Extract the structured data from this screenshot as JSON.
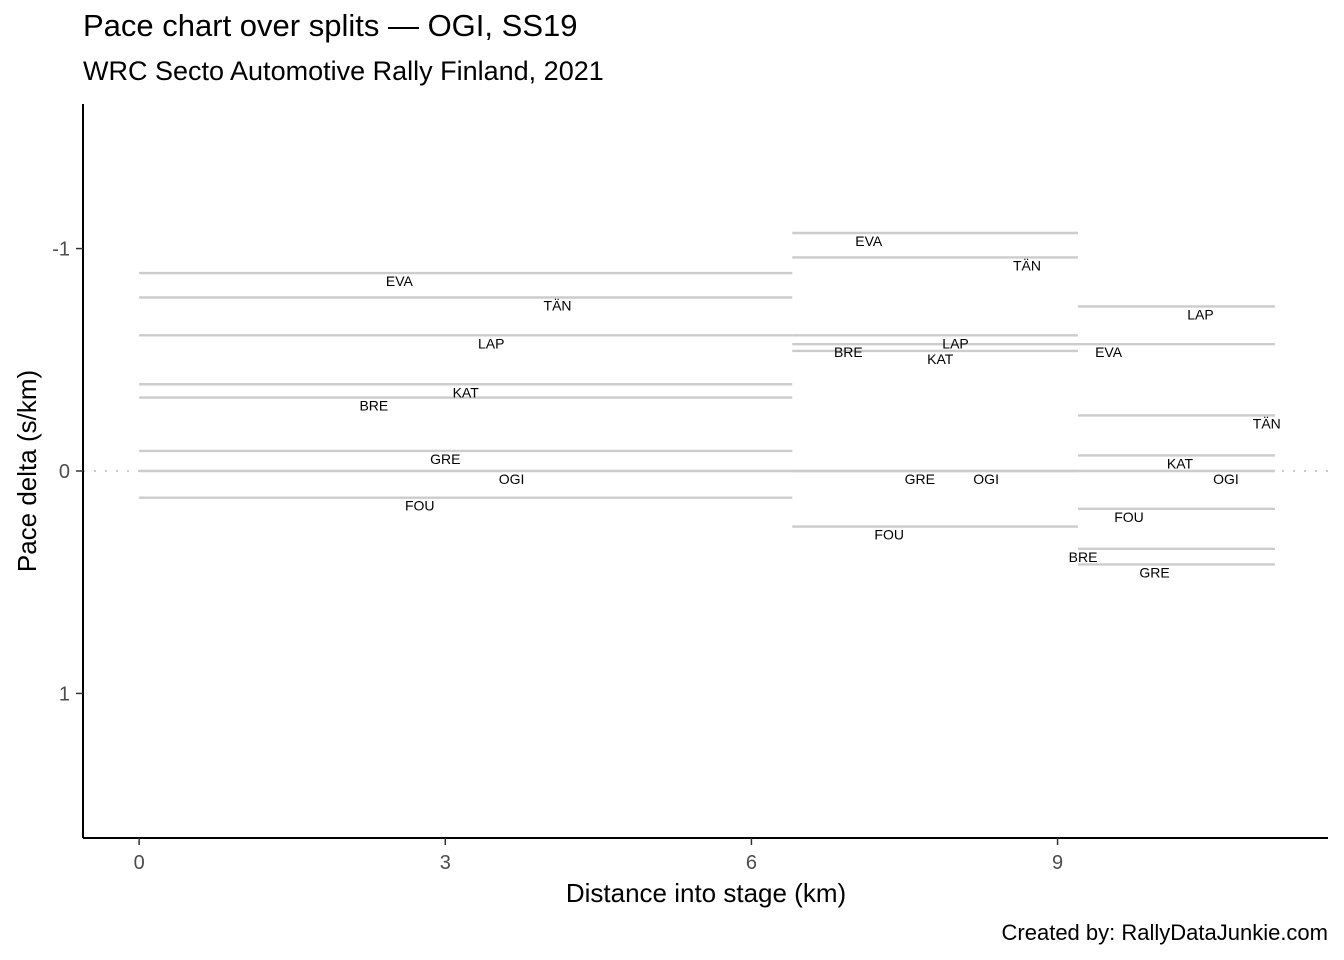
{
  "chart_data": {
    "type": "line",
    "title": "Pace chart over splits — OGI, SS19",
    "subtitle": "WRC Secto Automotive Rally Finland, 2021",
    "caption": "Created by: RallyDataJunkie.com",
    "xlabel": "Distance into stage (km)",
    "ylabel": "Pace delta (s/km)",
    "xlim": [
      -0.55,
      11.65
    ],
    "ylim": [
      1.65,
      -1.65
    ],
    "y_reversed": true,
    "xticks": [
      0,
      3,
      6,
      9
    ],
    "yticks": [
      -1,
      0,
      1
    ],
    "reference_line": 0,
    "grid": false,
    "splits": [
      {
        "x_start": 0,
        "x_end": 6.4,
        "drivers": [
          {
            "code": "EVA",
            "pace": -0.89,
            "label_x": 2.55
          },
          {
            "code": "TÄN",
            "pace": -0.78,
            "label_x": 4.1
          },
          {
            "code": "LAP",
            "pace": -0.61,
            "label_x": 3.45
          },
          {
            "code": "KAT",
            "pace": -0.39,
            "label_x": 3.2
          },
          {
            "code": "BRE",
            "pace": -0.33,
            "label_x": 2.3
          },
          {
            "code": "GRE",
            "pace": -0.09,
            "label_x": 3.0
          },
          {
            "code": "OGI",
            "pace": 0.0,
            "label_x": 3.65
          },
          {
            "code": "FOU",
            "pace": 0.12,
            "label_x": 2.75
          }
        ]
      },
      {
        "x_start": 6.4,
        "x_end": 9.2,
        "drivers": [
          {
            "code": "EVA",
            "pace": -1.07,
            "label_x": 7.15
          },
          {
            "code": "TÄN",
            "pace": -0.96,
            "label_x": 8.7
          },
          {
            "code": "LAP",
            "pace": -0.61,
            "label_x": 8.0
          },
          {
            "code": "BRE",
            "pace": -0.57,
            "label_x": 6.95
          },
          {
            "code": "KAT",
            "pace": -0.54,
            "label_x": 7.85
          },
          {
            "code": "GRE",
            "pace": 0.0,
            "label_x": 7.65
          },
          {
            "code": "OGI",
            "pace": 0.0,
            "label_x": 8.3
          },
          {
            "code": "FOU",
            "pace": 0.25,
            "label_x": 7.35
          }
        ]
      },
      {
        "x_start": 9.2,
        "x_end": 11.13,
        "drivers": [
          {
            "code": "LAP",
            "pace": -0.74,
            "label_x": 10.4
          },
          {
            "code": "EVA",
            "pace": -0.57,
            "label_x": 9.5
          },
          {
            "code": "TÄN",
            "pace": -0.25,
            "label_x": 11.05
          },
          {
            "code": "KAT",
            "pace": -0.07,
            "label_x": 10.2
          },
          {
            "code": "OGI",
            "pace": 0.0,
            "label_x": 10.65
          },
          {
            "code": "FOU",
            "pace": 0.17,
            "label_x": 9.7
          },
          {
            "code": "BRE",
            "pace": 0.35,
            "label_x": 9.25
          },
          {
            "code": "GRE",
            "pace": 0.42,
            "label_x": 9.95
          }
        ]
      }
    ]
  },
  "colors": {
    "segment": "#cccccc",
    "reference": "#cccccc",
    "axis": "#000000",
    "tick_text": "#4d4d4d"
  }
}
